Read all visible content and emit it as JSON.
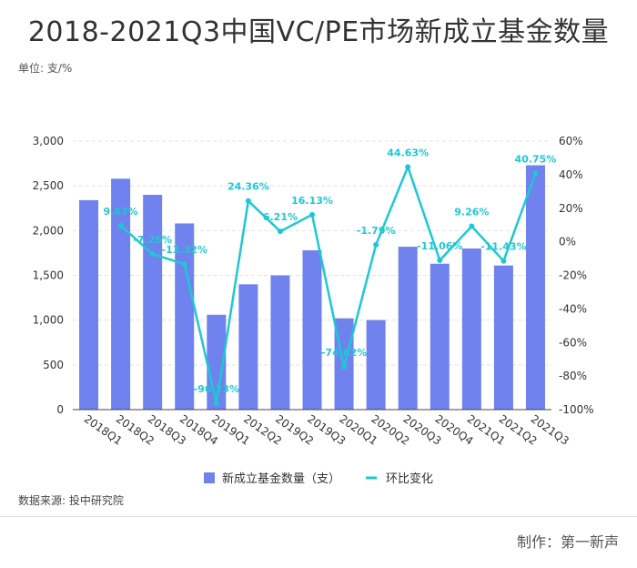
{
  "title": "2018-2021Q3中国VC/PE市场新成立基金数量",
  "unit_label": "单位: 支/%",
  "source": "数据来源: 投中研究院",
  "maker": "制作：第一新声",
  "colors": {
    "bar": "#6f82ee",
    "line": "#1ec8d2",
    "label": "#1ec8d2",
    "grid": "#e2e2e2"
  },
  "chart_data": {
    "type": "bar",
    "categories": [
      "2018Q1",
      "2018Q2",
      "2018Q3",
      "2018Q4",
      "2019Q1",
      "2012Q2",
      "2019Q2",
      "2019Q3",
      "2020Q1",
      "2020Q2",
      "2020Q3",
      "2020Q4",
      "2021Q1",
      "2021Q2",
      "2021Q3"
    ],
    "series": [
      {
        "name": "新成立基金数量（支）",
        "type": "bar",
        "axis": "left",
        "values": [
          2340,
          2580,
          2400,
          2080,
          1060,
          1400,
          1500,
          1780,
          1020,
          1000,
          1820,
          1630,
          1800,
          1610,
          2730
        ]
      },
      {
        "name": "环比变化",
        "type": "line",
        "axis": "right",
        "values": [
          null,
          9.67,
          -7.26,
          -13.32,
          -96.23,
          24.36,
          6.21,
          16.13,
          -74.62,
          -1.79,
          44.63,
          -11.06,
          9.26,
          -11.43,
          40.75
        ],
        "labels": [
          null,
          "9.67%",
          "-7.26%",
          "-13.32%",
          "-96.23%",
          "24.36%",
          "6.21%",
          "16.13%",
          "-74.62%",
          "-1.79%",
          "44.63%",
          "-11.06%",
          "9.26%",
          "-11.43%",
          "40.75%"
        ]
      }
    ],
    "y_left": {
      "min": 0,
      "max": 3000,
      "ticks": [
        "0",
        "500",
        "1,000",
        "1,500",
        "2,000",
        "2,500",
        "3,000"
      ]
    },
    "y_right": {
      "min": -100,
      "max": 60,
      "ticks": [
        "-100%",
        "-80%",
        "-60%",
        "-40%",
        "-20%",
        "0%",
        "20%",
        "40%",
        "60%"
      ]
    },
    "grid": true,
    "legend_position": "bottom"
  }
}
